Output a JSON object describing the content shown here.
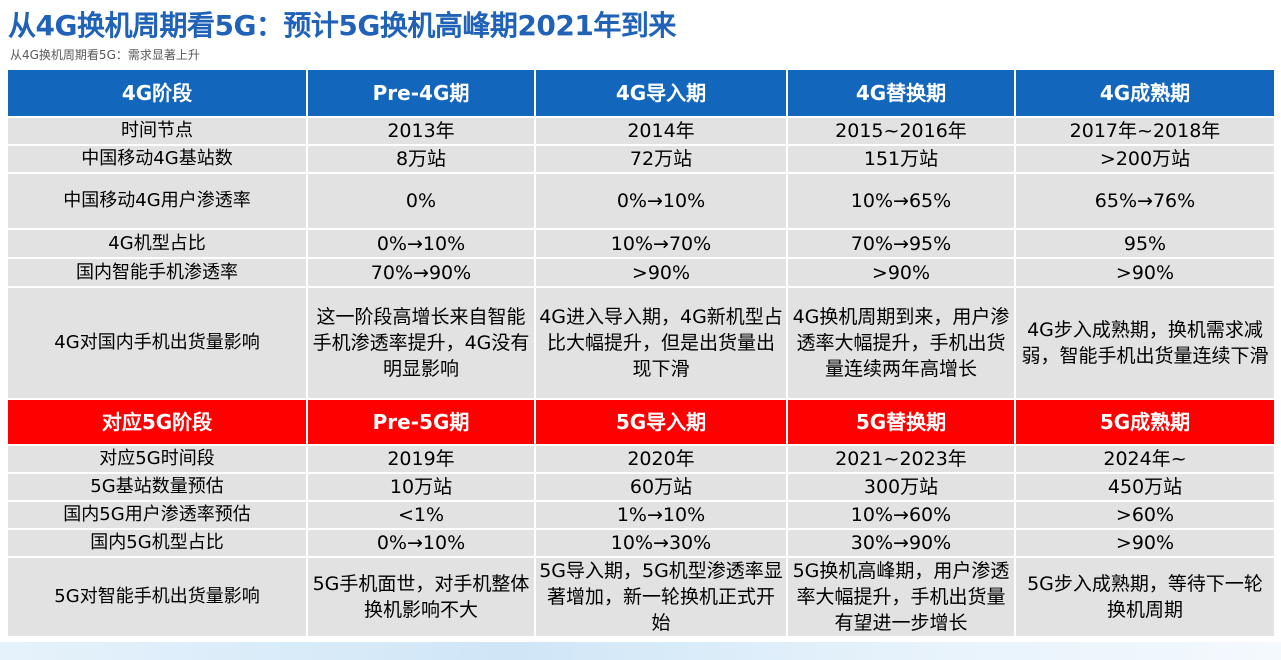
{
  "title": "从4G换机周期看5G：预计5G换机高峰期2021年到来",
  "subtitle": "从4G换机周期看5G：需求显著上升",
  "colors": {
    "header_4g": "#1266bc",
    "header_5g": "#ff0000",
    "cell": "#e2e2e2",
    "title": "#1f62b8"
  },
  "table_4g": {
    "headers": [
      "4G阶段",
      "Pre-4G期",
      "4G导入期",
      "4G替换期",
      "4G成熟期"
    ],
    "rows": [
      {
        "label": "时间节点",
        "cells": [
          "2013年",
          "2014年",
          "2015~2016年",
          "2017年~2018年"
        ]
      },
      {
        "label": "中国移动4G基站数",
        "cells": [
          "8万站",
          "72万站",
          "151万站",
          ">200万站"
        ]
      },
      {
        "label": "中国移动4G用户渗透率",
        "cells": [
          "0%",
          "0%→10%",
          "10%→65%",
          "65%→76%"
        ]
      },
      {
        "label": "4G机型占比",
        "cells": [
          "0%→10%",
          "10%→70%",
          "70%→95%",
          "95%"
        ]
      },
      {
        "label": "国内智能手机渗透率",
        "cells": [
          "70%→90%",
          ">90%",
          ">90%",
          ">90%"
        ]
      },
      {
        "label": "4G对国内手机出货量影响",
        "cells": [
          "这一阶段高增长来自智能手机渗透率提升，4G没有明显影响",
          "4G进入导入期，4G新机型占比大幅提升，但是出货量出现下滑",
          "4G换机周期到来，用户渗透率大幅提升，手机出货量连续两年高增长",
          "4G步入成熟期，换机需求减弱，智能手机出货量连续下滑"
        ]
      }
    ]
  },
  "table_5g": {
    "headers": [
      "对应5G阶段",
      "Pre-5G期",
      "5G导入期",
      "5G替换期",
      "5G成熟期"
    ],
    "rows": [
      {
        "label": "对应5G时间段",
        "cells": [
          "2019年",
          "2020年",
          "2021~2023年",
          "2024年~"
        ]
      },
      {
        "label": "5G基站数量预估",
        "cells": [
          "10万站",
          "60万站",
          "300万站",
          "450万站"
        ]
      },
      {
        "label": "国内5G用户渗透率预估",
        "cells": [
          "<1%",
          "1%→10%",
          "10%→60%",
          ">60%"
        ]
      },
      {
        "label": "国内5G机型占比",
        "cells": [
          "0%→10%",
          "10%→30%",
          "30%→90%",
          ">90%"
        ]
      },
      {
        "label": "5G对智能手机出货量影响",
        "cells": [
          "5G手机面世，对手机整体换机影响不大",
          "5G导入期，5G机型渗透率显著增加，新一轮换机正式开始",
          "5G换机高峰期，用户渗透率大幅提升，手机出货量有望进一步增长",
          "5G步入成熟期，等待下一轮换机周期"
        ]
      }
    ]
  }
}
